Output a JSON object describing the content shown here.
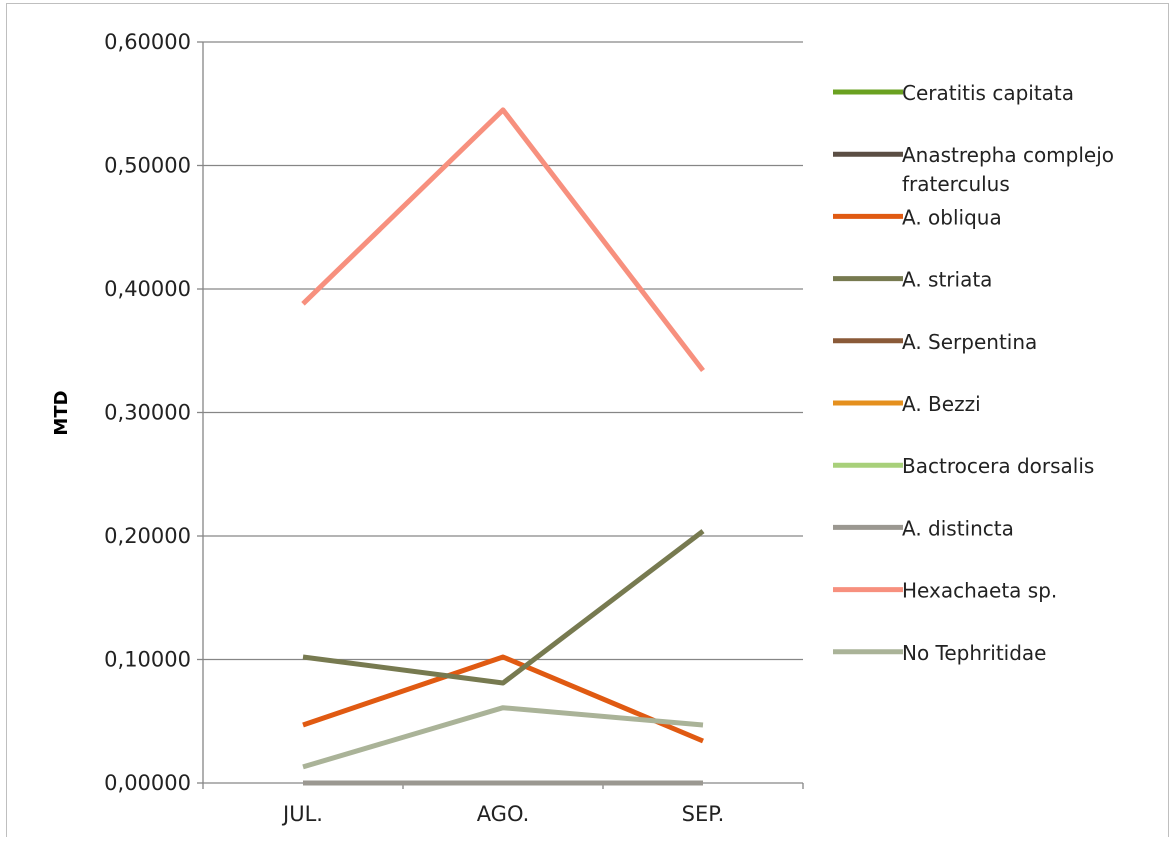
{
  "chart_data": {
    "type": "line",
    "title": "",
    "xlabel": "",
    "ylabel": "MTD",
    "categories": [
      "JUL.",
      "AGO.",
      "SEP."
    ],
    "ylim": [
      0,
      0.6
    ],
    "yticks": [
      0,
      0.1,
      0.2,
      0.3,
      0.4,
      0.5,
      0.6
    ],
    "ytick_labels": [
      "0,00000",
      "0,10000",
      "0,20000",
      "0,30000",
      "0,40000",
      "0,50000",
      "0,60000"
    ],
    "grid": true,
    "legend_position": "right",
    "series": [
      {
        "name": "Ceratitis capitata",
        "label_lines": [
          "Ceratitis capitata"
        ],
        "color": "#6aa120",
        "values": [
          0,
          0,
          0
        ]
      },
      {
        "name": "Anastrepha complejo fraterculus",
        "label_lines": [
          "Anastrepha complejo",
          "fraterculus"
        ],
        "color": "#5b4e44",
        "values": [
          0,
          0,
          0
        ]
      },
      {
        "name": "A. obliqua",
        "label_lines": [
          "A. obliqua"
        ],
        "color": "#e05a12",
        "values": [
          0.047,
          0.102,
          0.034
        ]
      },
      {
        "name": "A. striata",
        "label_lines": [
          "A. striata"
        ],
        "color": "#777a50",
        "values": [
          0.102,
          0.081,
          0.204
        ]
      },
      {
        "name": "A. Serpentina",
        "label_lines": [
          "A. Serpentina"
        ],
        "color": "#8a5a38",
        "values": [
          0,
          0,
          0
        ]
      },
      {
        "name": "A. Bezzi",
        "label_lines": [
          "A. Bezzi"
        ],
        "color": "#e5901e",
        "values": [
          0,
          0,
          0
        ]
      },
      {
        "name": "Bactrocera dorsalis",
        "label_lines": [
          "Bactrocera dorsalis"
        ],
        "color": "#a8d07a",
        "values": [
          0,
          0,
          0
        ]
      },
      {
        "name": "A. distincta",
        "label_lines": [
          "A. distincta"
        ],
        "color": "#9b9891",
        "values": [
          0,
          0,
          0
        ]
      },
      {
        "name": "Hexachaeta sp.",
        "label_lines": [
          "Hexachaeta sp."
        ],
        "color": "#f7907e",
        "values": [
          0.388,
          0.545,
          0.334
        ]
      },
      {
        "name": "No Tephritidae",
        "label_lines": [
          "No Tephritidae"
        ],
        "color": "#aab398",
        "values": [
          0.013,
          0.061,
          0.047
        ]
      }
    ]
  }
}
